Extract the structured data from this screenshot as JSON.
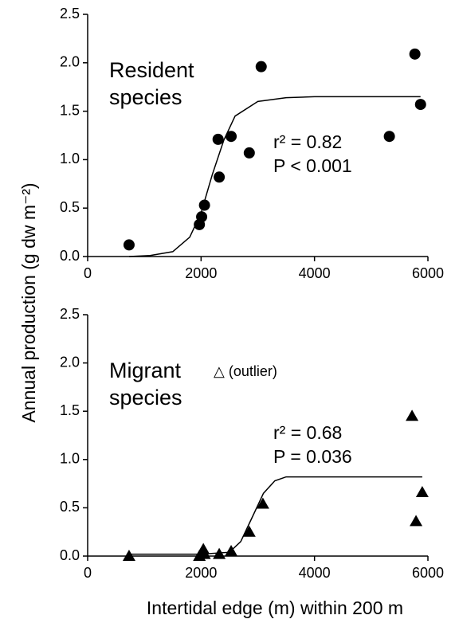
{
  "chart_data": [
    {
      "type": "scatter",
      "annotation_lines": [
        "Resident",
        "species"
      ],
      "stats": [
        "r² = 0.82",
        "P < 0.001"
      ],
      "y_label": "Annual production (g dw m⁻²)",
      "xlim": [
        0,
        6000
      ],
      "ylim": [
        0,
        2.5
      ],
      "xticks": [
        0,
        2000,
        4000,
        6000
      ],
      "yticks": [
        {
          "value": 0,
          "label": "0.0"
        },
        0.5,
        {
          "value": 1,
          "label": "1.0"
        },
        1.5,
        {
          "value": 2,
          "label": "2.0"
        },
        2.5
      ],
      "series": [
        {
          "marker": "circle",
          "color": "#000000",
          "x": [
            730,
            1970,
            2010,
            2060,
            2300,
            2320,
            2530,
            2850,
            3060,
            5320,
            5770,
            5870
          ],
          "values": [
            0.12,
            0.33,
            0.41,
            0.53,
            1.21,
            0.82,
            1.24,
            1.07,
            1.96,
            1.24,
            2.09,
            1.57
          ]
        },
        {
          "marker": "line",
          "color": "#000000",
          "x": [
            730,
            1100,
            1500,
            1800,
            2000,
            2200,
            2400,
            2600,
            3000,
            3500,
            4000,
            5000,
            5870
          ],
          "values": [
            0,
            0.01,
            0.05,
            0.2,
            0.45,
            0.85,
            1.2,
            1.45,
            1.6,
            1.64,
            1.65,
            1.65,
            1.65
          ]
        }
      ]
    },
    {
      "type": "scatter",
      "annotation_lines": [
        "Migrant",
        "species"
      ],
      "outlier_note": "△ (outlier)",
      "stats": [
        "r² = 0.68",
        "P = 0.036"
      ],
      "x_label": "Intertidal edge (m) within 200 m",
      "xlim": [
        0,
        6000
      ],
      "ylim": [
        0,
        2.5
      ],
      "xticks": [
        0,
        2000,
        4000,
        6000
      ],
      "yticks": [
        {
          "value": 0,
          "label": "0.0"
        },
        0.5,
        {
          "value": 1,
          "label": "1.0"
        },
        1.5,
        {
          "value": 2,
          "label": "2.0"
        },
        2.5
      ],
      "series": [
        {
          "marker": "triangle",
          "color": "#000000",
          "x": [
            730,
            1970,
            2040,
            2060,
            2320,
            2530,
            2850,
            3090,
            5720,
            5900,
            5790
          ],
          "values": [
            0,
            0,
            0.07,
            0.02,
            0.02,
            0.05,
            0.25,
            0.54,
            1.45,
            0.66,
            0.36
          ]
        },
        {
          "marker": "line",
          "color": "#000000",
          "x": [
            730,
            1500,
            2000,
            2500,
            2700,
            2900,
            3100,
            3300,
            3500,
            4000,
            5000,
            5900
          ],
          "values": [
            0.02,
            0.02,
            0.02,
            0.04,
            0.15,
            0.4,
            0.65,
            0.78,
            0.82,
            0.82,
            0.82,
            0.82
          ]
        }
      ]
    }
  ]
}
